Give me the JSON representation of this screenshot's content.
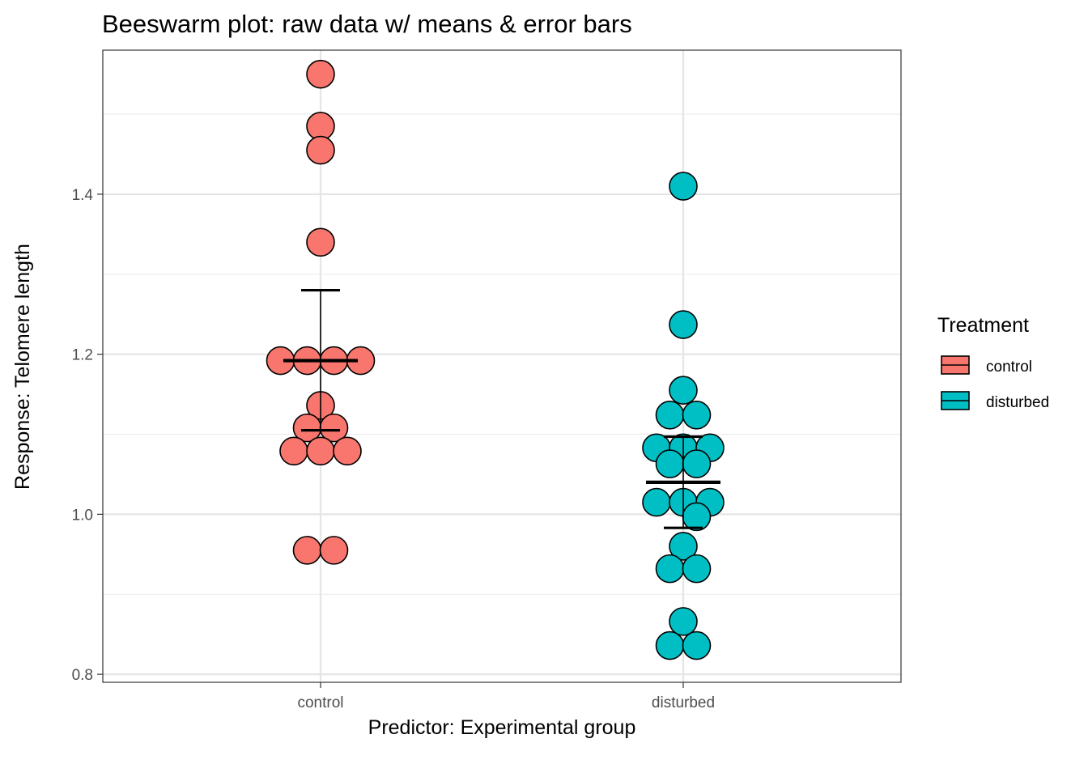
{
  "chart_data": {
    "type": "scatter",
    "subtype": "beeswarm",
    "title": "Beeswarm plot: raw data w/ means & error bars",
    "xlabel": "Predictor: Experimental group",
    "ylabel": "Response: Telomere length",
    "categories": [
      "control",
      "disturbed"
    ],
    "ylim": [
      0.79,
      1.58
    ],
    "yticks": [
      0.8,
      1.0,
      1.2,
      1.4
    ],
    "ytick_labels": [
      "0.8",
      "1.0",
      "1.2",
      "1.4"
    ],
    "grid": true,
    "legend": {
      "title": "Treatment",
      "placement": "right",
      "entries": [
        "control",
        "disturbed"
      ]
    },
    "series": [
      {
        "name": "control",
        "color": "#F8766D",
        "values": [
          1.55,
          1.485,
          1.455,
          1.34,
          1.192,
          1.192,
          1.192,
          1.192,
          1.136,
          1.108,
          1.108,
          1.079,
          1.079,
          1.079,
          0.955,
          0.955
        ],
        "swarm": [
          0,
          0,
          0,
          0,
          -1.5,
          -0.5,
          0.5,
          1.5,
          0,
          -0.5,
          0.5,
          -1,
          0,
          1,
          -0.5,
          0.5
        ],
        "mean": 1.192,
        "error": [
          1.105,
          1.28
        ]
      },
      {
        "name": "disturbed",
        "color": "#00BFC4",
        "values": [
          1.41,
          1.237,
          1.155,
          1.124,
          1.124,
          1.083,
          1.083,
          1.083,
          1.063,
          1.063,
          1.015,
          1.015,
          1.015,
          0.997,
          0.96,
          0.932,
          0.932,
          0.866,
          0.836,
          0.836
        ],
        "swarm": [
          0,
          0,
          0,
          -0.5,
          0.5,
          -1,
          0,
          1,
          -0.5,
          0.5,
          -1,
          0,
          1,
          0.5,
          0,
          -0.5,
          0.5,
          0,
          -0.5,
          0.5
        ],
        "mean": 1.04,
        "error": [
          0.983,
          1.097
        ]
      }
    ]
  }
}
